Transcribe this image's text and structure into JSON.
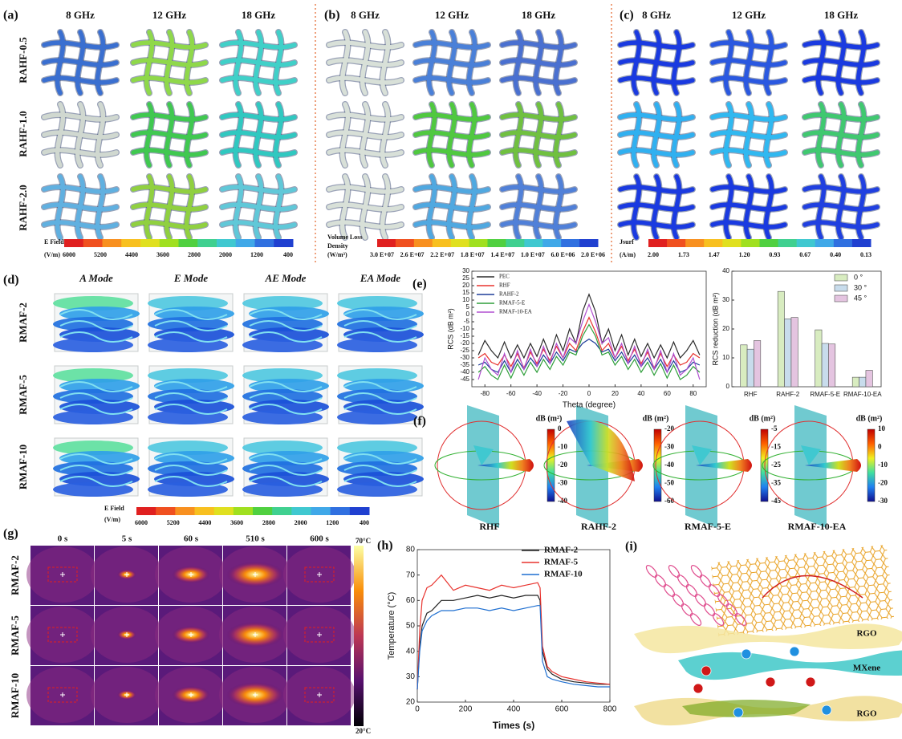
{
  "panel_a": {
    "label": "(a)",
    "columns": [
      "8 GHz",
      "12 GHz",
      "18 GHz"
    ],
    "rows": [
      "RAHF-0.5",
      "RAHF-1.0",
      "RAHF-2.0"
    ],
    "colorbar": {
      "title": [
        "E Field",
        "(V/m)"
      ],
      "ticks": [
        "6000",
        "5200",
        "4400",
        "3600",
        "2800",
        "2000",
        "1200",
        "400"
      ]
    }
  },
  "panel_b": {
    "label": "(b)",
    "columns": [
      "8 GHz",
      "12 GHz",
      "18 GHz"
    ],
    "colorbar": {
      "title": [
        "Volume Loss",
        "Density",
        "(W/m³)"
      ],
      "ticks": [
        "3.0 E+07",
        "2.6 E+07",
        "2.2 E+07",
        "1.8 E+07",
        "1.4 E+07",
        "1.0 E+07",
        "6.0 E+06",
        "2.0 E+06"
      ]
    }
  },
  "panel_c": {
    "label": "(c)",
    "columns": [
      "8 GHz",
      "12 GHz",
      "18 GHz"
    ],
    "colorbar": {
      "title": [
        "Jsurf",
        "(A/m)"
      ],
      "ticks": [
        "2.00",
        "1.73",
        "1.47",
        "1.20",
        "0.93",
        "0.67",
        "0.40",
        "0.13"
      ]
    }
  },
  "panel_d": {
    "label": "(d)",
    "columns": [
      "A Mode",
      "E Mode",
      "AE Mode",
      "EA Mode"
    ],
    "rows": [
      "RMAF-2",
      "RMAF-5",
      "RMAF-10"
    ],
    "colorbar": {
      "title": [
        "E Field",
        "(V/m)"
      ],
      "ticks": [
        "6000",
        "5200",
        "4400",
        "3600",
        "2800",
        "2000",
        "1200",
        "400"
      ]
    }
  },
  "panel_e": {
    "label": "(e)"
  },
  "panel_f": {
    "label": "(f)",
    "plots": [
      {
        "name": "RHF",
        "unit": "dB (m²)",
        "ticks": [
          0,
          -10,
          -20,
          -30,
          -40
        ]
      },
      {
        "name": "RAHF-2",
        "unit": "dB (m²)",
        "ticks": [
          -20,
          -30,
          -40,
          -50,
          -60
        ]
      },
      {
        "name": "RMAF-5-E",
        "unit": "dB (m²)",
        "ticks": [
          -5,
          -15,
          -25,
          -35,
          -45
        ]
      },
      {
        "name": "RMAF-10-EA",
        "unit": "dB (m²)",
        "ticks": [
          10,
          0,
          -10,
          -20,
          -30
        ]
      }
    ]
  },
  "panel_g": {
    "label": "(g)",
    "columns": [
      "0 s",
      "5 s",
      "60 s",
      "510 s",
      "600 s"
    ],
    "rows": [
      "RMAF-2",
      "RMAF-5",
      "RMAF-10"
    ],
    "colorbar": {
      "max": "70°C",
      "min": "20°C"
    }
  },
  "panel_h": {
    "label": "(h)"
  },
  "panel_i": {
    "label": "(i)",
    "layers": [
      "RGO",
      "MXene",
      "RGO"
    ]
  },
  "chart_data": [
    {
      "type": "line",
      "xlabel": "Theta (degree)",
      "ylabel": "RCS (dB m²)",
      "x": [
        -85,
        -80,
        -75,
        -70,
        -65,
        -60,
        -55,
        -50,
        -45,
        -40,
        -35,
        -30,
        -25,
        -20,
        -15,
        -10,
        -5,
        0,
        5,
        10,
        15,
        20,
        25,
        30,
        35,
        40,
        45,
        50,
        55,
        60,
        65,
        70,
        75,
        80,
        85
      ],
      "xlim": [
        -90,
        90
      ],
      "xticks": [
        -80,
        -60,
        -40,
        -20,
        0,
        20,
        40,
        60,
        80
      ],
      "ylim": [
        -50,
        30
      ],
      "yticks": [
        30,
        25,
        20,
        15,
        10,
        5,
        0,
        -5,
        -10,
        -15,
        -20,
        -25,
        -30,
        -35,
        -40,
        -45
      ],
      "legend": "upper left",
      "series": [
        {
          "name": "PEC",
          "color": "#2b2b2b",
          "values": [
            -28,
            -18,
            -25,
            -30,
            -19,
            -30,
            -21,
            -30,
            -20,
            -29,
            -17,
            -28,
            -14,
            -25,
            -10,
            -20,
            2,
            14,
            2,
            -20,
            -10,
            -25,
            -14,
            -28,
            -17,
            -29,
            -20,
            -30,
            -21,
            -30,
            -19,
            -30,
            -25,
            -18,
            -28
          ]
        },
        {
          "name": "RHF",
          "color": "#e8332e",
          "values": [
            -30,
            -27,
            -33,
            -35,
            -28,
            -36,
            -27,
            -37,
            -26,
            -34,
            -24,
            -32,
            -22,
            -30,
            -20,
            -25,
            -12,
            -2,
            -12,
            -25,
            -20,
            -30,
            -22,
            -32,
            -24,
            -34,
            -26,
            -37,
            -27,
            -36,
            -28,
            -35,
            -33,
            -27,
            -30
          ]
        },
        {
          "name": "RAHF-2",
          "color": "#1f3d99",
          "values": [
            -35,
            -33,
            -38,
            -40,
            -32,
            -40,
            -31,
            -38,
            -30,
            -36,
            -28,
            -34,
            -26,
            -32,
            -24,
            -26,
            -20,
            -17,
            -20,
            -26,
            -24,
            -32,
            -26,
            -34,
            -28,
            -36,
            -30,
            -38,
            -31,
            -40,
            -32,
            -40,
            -38,
            -33,
            -35
          ]
        },
        {
          "name": "RMAF-5-E",
          "color": "#2e9e3a",
          "values": [
            -40,
            -36,
            -42,
            -45,
            -35,
            -44,
            -34,
            -42,
            -33,
            -40,
            -31,
            -38,
            -29,
            -35,
            -26,
            -28,
            -15,
            -7,
            -15,
            -28,
            -26,
            -35,
            -29,
            -38,
            -31,
            -40,
            -33,
            -42,
            -34,
            -44,
            -35,
            -45,
            -42,
            -36,
            -40
          ]
        },
        {
          "name": "RMAF-10-EA",
          "color": "#b04fd0",
          "values": [
            -45,
            -30,
            -38,
            -42,
            -27,
            -40,
            -25,
            -38,
            -24,
            -36,
            -22,
            -34,
            -20,
            -30,
            -16,
            -20,
            -5,
            7,
            -5,
            -20,
            -16,
            -30,
            -20,
            -34,
            -22,
            -36,
            -24,
            -38,
            -25,
            -40,
            -27,
            -42,
            -38,
            -30,
            -45
          ]
        }
      ]
    },
    {
      "type": "bar",
      "ylabel": "RCS reduction (dB m²)",
      "categories": [
        "RHF",
        "RAHF-2",
        "RMAF-5-E",
        "RMAF-10-EA"
      ],
      "ylim": [
        0,
        40
      ],
      "yticks": [
        0,
        10,
        20,
        30,
        40
      ],
      "legend": "upper right",
      "series": [
        {
          "name": "0 °",
          "color": "#d8ecc0",
          "values": [
            14.5,
            33,
            19.7,
            3.3
          ]
        },
        {
          "name": "30 °",
          "color": "#c8dcec",
          "values": [
            13,
            23.5,
            15,
            3.3
          ]
        },
        {
          "name": "45 °",
          "color": "#e4c4e0",
          "values": [
            16,
            24,
            14.8,
            5.7
          ]
        }
      ]
    },
    {
      "type": "line",
      "xlabel": "Times (s)",
      "ylabel": "Temperature (°C)",
      "x": [
        0,
        10,
        20,
        40,
        60,
        80,
        100,
        150,
        200,
        250,
        300,
        350,
        400,
        450,
        500,
        510,
        520,
        540,
        560,
        600,
        650,
        700,
        750,
        800
      ],
      "xlim": [
        0,
        800
      ],
      "xticks": [
        0,
        200,
        400,
        600,
        800
      ],
      "ylim": [
        20,
        80
      ],
      "yticks": [
        20,
        30,
        40,
        50,
        60,
        70,
        80
      ],
      "legend": "upper right",
      "series": [
        {
          "name": "RMAF-2",
          "color": "#222222",
          "values": [
            25,
            42,
            50,
            55,
            56,
            58,
            60,
            60,
            61,
            62,
            61,
            62,
            61,
            62,
            62,
            60,
            40,
            33,
            31,
            29,
            28,
            27.5,
            27,
            27
          ]
        },
        {
          "name": "RMAF-5",
          "color": "#e8332e",
          "values": [
            25,
            48,
            60,
            65,
            66,
            68,
            70,
            64,
            66,
            65,
            64,
            66,
            65,
            66,
            67,
            65,
            42,
            34,
            32,
            30,
            29,
            28,
            27.5,
            27
          ]
        },
        {
          "name": "RMAF-10",
          "color": "#1f6fd0",
          "values": [
            25,
            40,
            48,
            52,
            54,
            55,
            56,
            56,
            57,
            57,
            56,
            57,
            56,
            57,
            58,
            58,
            36,
            30,
            29,
            28,
            27,
            26.5,
            26,
            26
          ]
        }
      ]
    }
  ]
}
